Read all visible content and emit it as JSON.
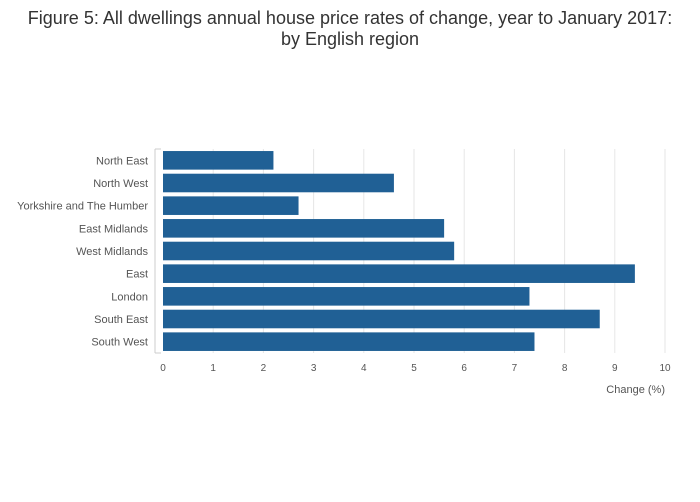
{
  "chart_data": {
    "type": "bar",
    "orientation": "horizontal",
    "title": "Figure 5: All dwellings annual house price rates of change, year to January 2017: by English region",
    "categories": [
      "North East",
      "North West",
      "Yorkshire and The Humber",
      "East Midlands",
      "West Midlands",
      "East",
      "London",
      "South East",
      "South West"
    ],
    "values": [
      2.2,
      4.6,
      2.7,
      5.6,
      5.8,
      9.4,
      7.3,
      8.7,
      7.4
    ],
    "xlabel": "Change (%)",
    "ylabel": "",
    "xlim": [
      0,
      10
    ],
    "xticks": [
      "0",
      "1",
      "2",
      "3",
      "4",
      "5",
      "6",
      "7",
      "8",
      "9",
      "10"
    ],
    "grid": "vertical",
    "bar_color": "#206095",
    "legend": "none"
  }
}
